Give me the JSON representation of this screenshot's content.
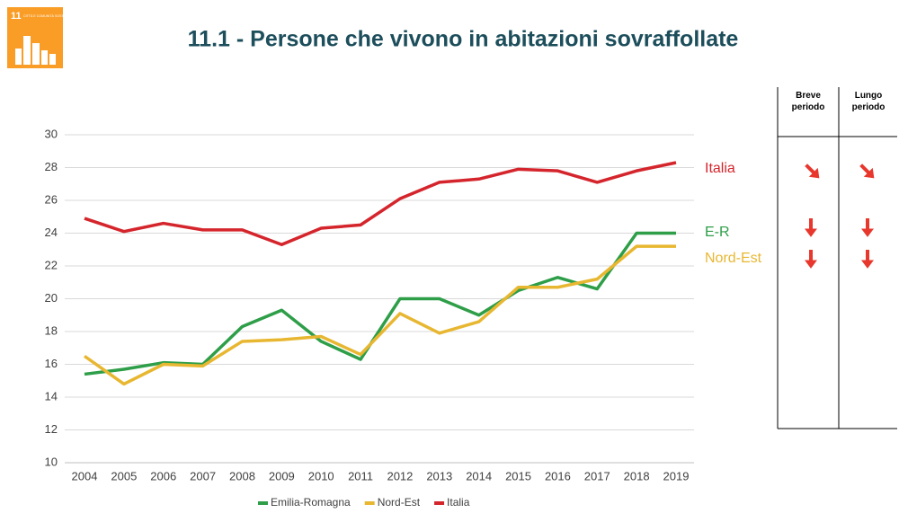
{
  "logo": {
    "number": "11",
    "text": "CITTÀ E COMUNITÀ SOSTENIBILI"
  },
  "chart_data": {
    "type": "line",
    "title": "11.1 - Persone che vivono in abitazioni sovraffollate",
    "categories": [
      "2004",
      "2005",
      "2006",
      "2007",
      "2008",
      "2009",
      "2010",
      "2011",
      "2012",
      "2013",
      "2014",
      "2015",
      "2016",
      "2017",
      "2018",
      "2019"
    ],
    "series": [
      {
        "name": "Emilia-Romagna",
        "end_label": "E-R",
        "color": "#2e9e48",
        "values": [
          15.4,
          15.7,
          16.1,
          16.0,
          18.3,
          19.3,
          17.4,
          16.3,
          20.0,
          20.0,
          19.0,
          20.5,
          21.3,
          20.6,
          24.0,
          24.0
        ]
      },
      {
        "name": "Nord-Est",
        "end_label": "Nord-Est",
        "color": "#e8b731",
        "values": [
          16.5,
          14.8,
          16.0,
          15.9,
          17.4,
          17.5,
          17.7,
          16.6,
          19.1,
          17.9,
          18.6,
          20.7,
          20.7,
          21.2,
          23.2,
          23.2
        ]
      },
      {
        "name": "Italia",
        "end_label": "Italia",
        "color": "#d5252c",
        "values": [
          24.9,
          24.1,
          24.6,
          24.2,
          24.2,
          23.3,
          24.3,
          24.5,
          26.1,
          27.1,
          27.3,
          27.9,
          27.8,
          27.1,
          27.8,
          28.3
        ]
      }
    ],
    "ylim": [
      10,
      30
    ],
    "yticks": [
      10,
      12,
      14,
      16,
      18,
      20,
      22,
      24,
      26,
      28,
      30
    ],
    "grid": true,
    "legend": "bottom"
  },
  "table": {
    "header": [
      "Breve periodo",
      "Lungo periodo"
    ]
  }
}
